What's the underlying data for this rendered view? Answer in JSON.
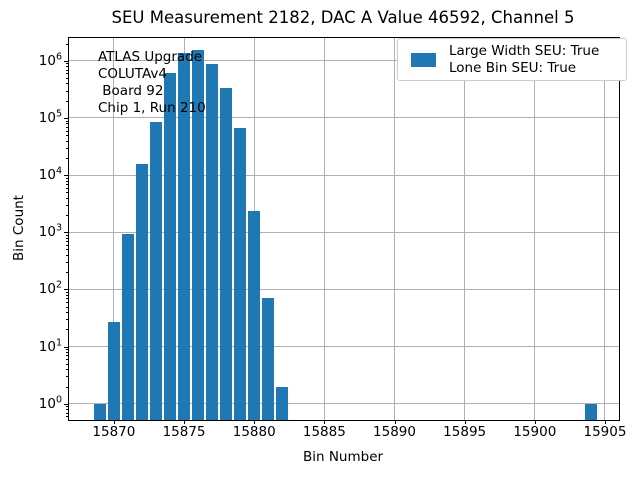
{
  "legend": {
    "lines": [
      "Large Width SEU: True",
      "Lone Bin SEU: True"
    ],
    "swatch_color": "#1f77b4"
  },
  "colors": {
    "bar": "#1f77b4",
    "grid": "#b0b0b0",
    "axis": "#000000",
    "legend_border": "#cccccc"
  },
  "chart_data": {
    "type": "bar",
    "title": "SEU Measurement 2182, DAC A Value 46592, Channel 5",
    "xlabel": "Bin Number",
    "ylabel": "Bin Count",
    "yscale": "log",
    "grid": true,
    "legend_position": "upper right",
    "annotation_lines": [
      "ATLAS Upgrade",
      "COLUTAv4",
      " Board 92",
      "Chip 1, Run 210"
    ],
    "x": [
      15869,
      15870,
      15871,
      15872,
      15873,
      15874,
      15875,
      15876,
      15877,
      15878,
      15879,
      15880,
      15881,
      15882,
      15904
    ],
    "values": [
      1,
      27,
      920,
      15700,
      84000,
      610000,
      1370000,
      1550000,
      880000,
      330000,
      67000,
      2400,
      71,
      2,
      1
    ],
    "bar_width": 0.86,
    "xlim": [
      15866.8,
      15906.0
    ],
    "ylim": [
      0.52,
      2500000
    ],
    "x_ticks": [
      15870,
      15875,
      15880,
      15885,
      15890,
      15895,
      15900,
      15905
    ],
    "y_tick_exponents": [
      0,
      1,
      2,
      3,
      4,
      5,
      6
    ]
  }
}
